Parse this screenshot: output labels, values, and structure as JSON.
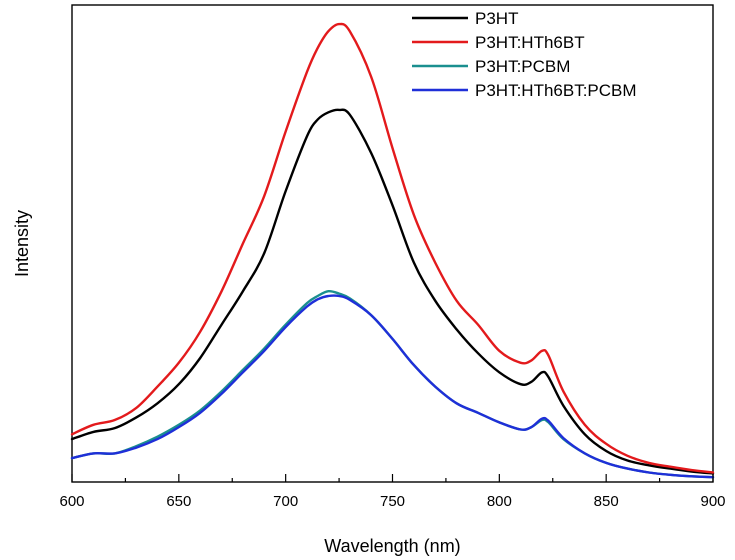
{
  "chart_data": {
    "type": "line",
    "title": "",
    "xlabel": "Wavelength (nm)",
    "ylabel": "Intensity",
    "xlim": [
      600,
      900
    ],
    "ylim": [
      0,
      1
    ],
    "x_ticks": [
      600,
      650,
      700,
      750,
      800,
      850,
      900
    ],
    "y_ticks_shown": false,
    "grid": false,
    "legend_position": "top-right",
    "x": [
      600,
      610,
      620,
      630,
      640,
      650,
      660,
      670,
      680,
      690,
      700,
      710,
      715,
      720,
      725,
      730,
      740,
      750,
      760,
      770,
      780,
      790,
      800,
      810,
      815,
      820,
      823,
      830,
      840,
      850,
      860,
      870,
      880,
      890,
      900
    ],
    "series": [
      {
        "name": "P3HT",
        "color": "#000000",
        "values": [
          0.09,
          0.105,
          0.113,
          0.135,
          0.165,
          0.205,
          0.26,
          0.33,
          0.4,
          0.48,
          0.61,
          0.725,
          0.76,
          0.775,
          0.78,
          0.77,
          0.69,
          0.58,
          0.46,
          0.38,
          0.32,
          0.27,
          0.23,
          0.205,
          0.21,
          0.23,
          0.22,
          0.16,
          0.1,
          0.065,
          0.045,
          0.035,
          0.028,
          0.022,
          0.018
        ]
      },
      {
        "name": "P3HT:HTh6BT",
        "color": "#e31a1c",
        "values": [
          0.1,
          0.12,
          0.13,
          0.155,
          0.2,
          0.25,
          0.315,
          0.4,
          0.5,
          0.6,
          0.735,
          0.86,
          0.91,
          0.945,
          0.96,
          0.945,
          0.85,
          0.7,
          0.56,
          0.46,
          0.38,
          0.33,
          0.275,
          0.25,
          0.255,
          0.275,
          0.265,
          0.19,
          0.12,
          0.08,
          0.055,
          0.04,
          0.032,
          0.025,
          0.02
        ]
      },
      {
        "name": "P3HT:PCBM",
        "color": "#1a8f8f",
        "values": [
          0.05,
          0.06,
          0.06,
          0.075,
          0.095,
          0.12,
          0.15,
          0.19,
          0.235,
          0.28,
          0.33,
          0.375,
          0.39,
          0.4,
          0.395,
          0.385,
          0.35,
          0.3,
          0.245,
          0.2,
          0.165,
          0.145,
          0.125,
          0.11,
          0.115,
          0.13,
          0.125,
          0.09,
          0.06,
          0.04,
          0.028,
          0.02,
          0.015,
          0.012,
          0.01
        ]
      },
      {
        "name": "P3HT:HTh6BT:PCBM",
        "color": "#1f2fd8",
        "values": [
          0.05,
          0.06,
          0.06,
          0.072,
          0.09,
          0.115,
          0.145,
          0.185,
          0.23,
          0.275,
          0.325,
          0.368,
          0.383,
          0.39,
          0.39,
          0.382,
          0.35,
          0.3,
          0.245,
          0.2,
          0.165,
          0.145,
          0.125,
          0.11,
          0.115,
          0.133,
          0.128,
          0.092,
          0.06,
          0.04,
          0.028,
          0.02,
          0.015,
          0.012,
          0.01
        ]
      }
    ]
  }
}
